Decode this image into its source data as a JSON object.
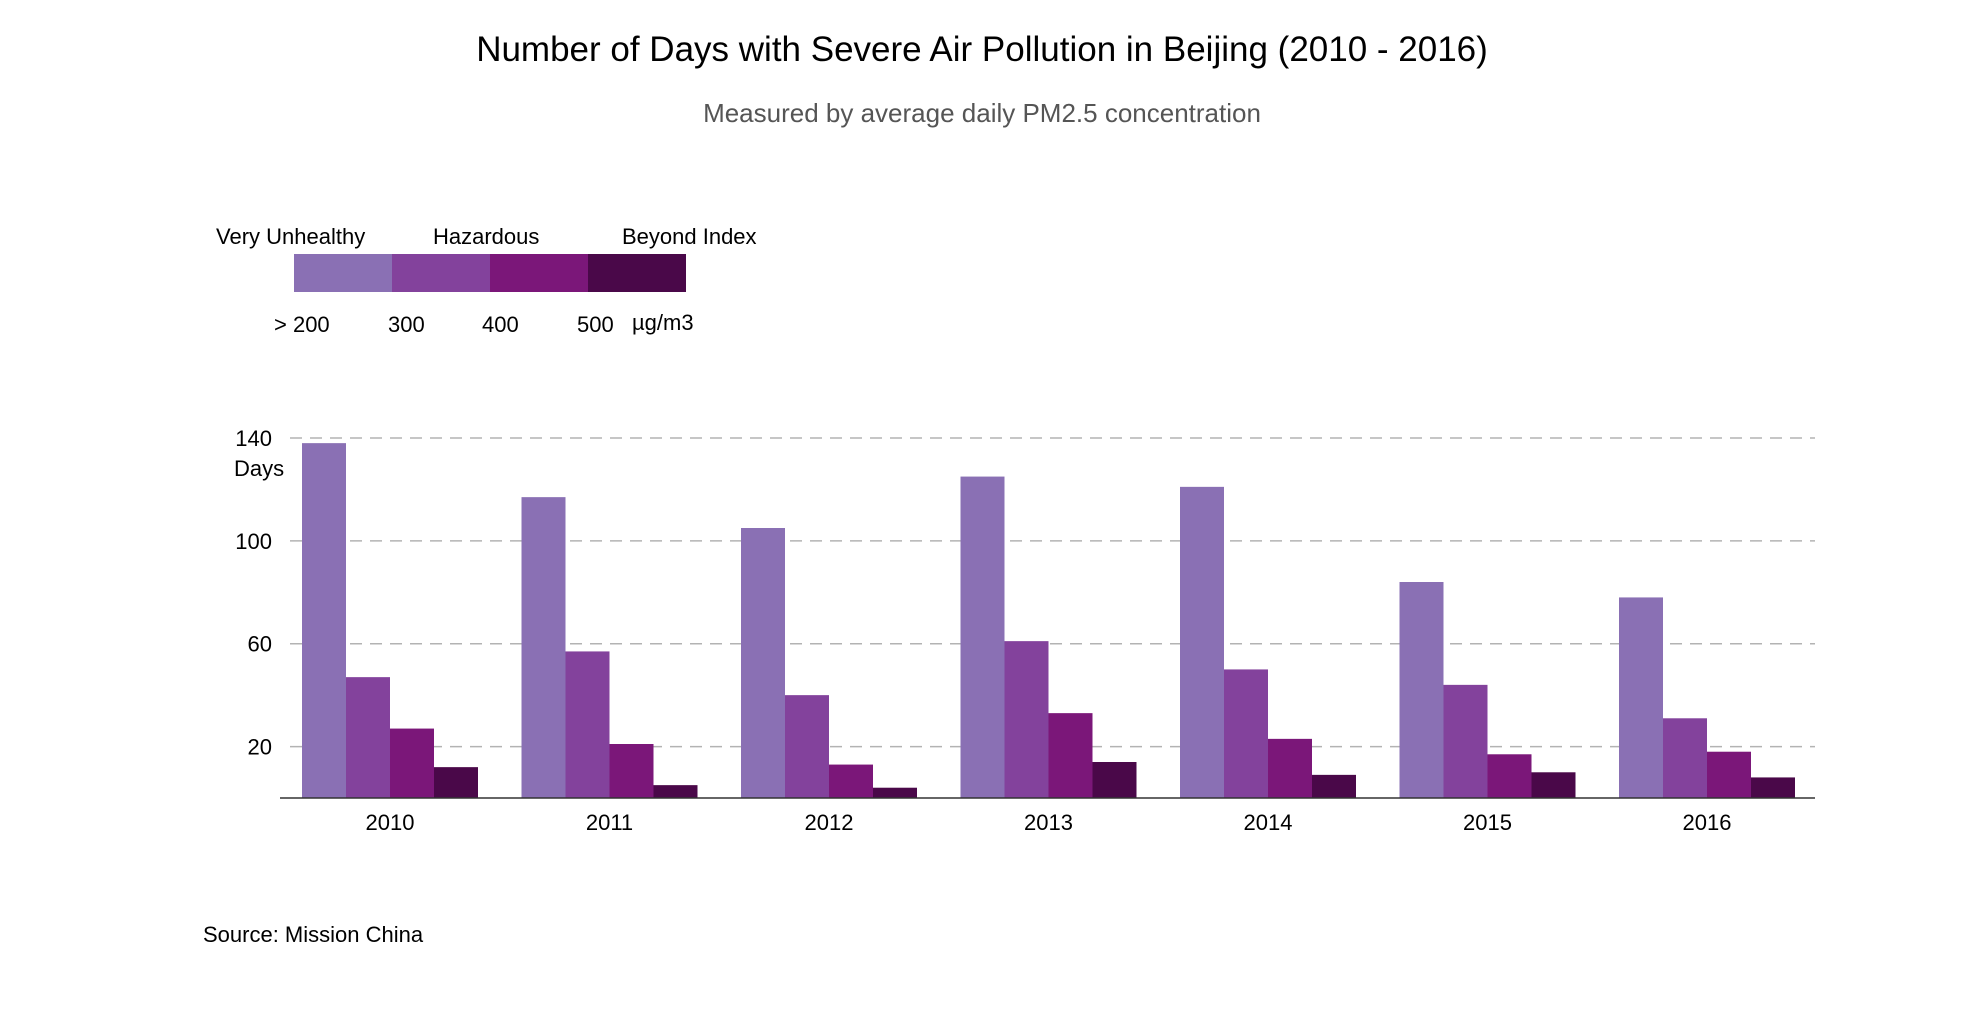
{
  "title": "Number of Days with Severe  Air Pollution in Beijing (2010 - 2016)",
  "subtitle": "Measured by average daily PM2.5 concentration",
  "legend": {
    "categories": [
      "Very Unhealthy",
      "Hazardous",
      "Beyond Index"
    ],
    "ticks": [
      "> 200",
      "300",
      "400",
      "500"
    ],
    "unit": "µg/m3"
  },
  "source": "Source: Mission China",
  "colors": [
    "#8a70b4",
    "#83429c",
    "#7b1779",
    "#4a0849"
  ],
  "chart_data": {
    "type": "bar",
    "categories": [
      "2010",
      "2011",
      "2012",
      "2013",
      "2014",
      "2015",
      "2016"
    ],
    "series": [
      {
        "range": "> 200",
        "values": [
          138,
          117,
          105,
          125,
          121,
          84,
          78
        ]
      },
      {
        "range": "300 – 400",
        "values": [
          47,
          57,
          40,
          61,
          50,
          44,
          31
        ]
      },
      {
        "range": "400 – 500",
        "values": [
          27,
          21,
          13,
          33,
          23,
          17,
          18
        ]
      },
      {
        "range": "500+",
        "values": [
          12,
          5,
          4,
          14,
          9,
          10,
          8
        ]
      }
    ],
    "yticks": [
      20,
      60,
      100,
      140
    ],
    "ylabel": "Days",
    "ylim": [
      0,
      140
    ],
    "grid": "horizontal dashed",
    "legend_position": "top-left"
  }
}
